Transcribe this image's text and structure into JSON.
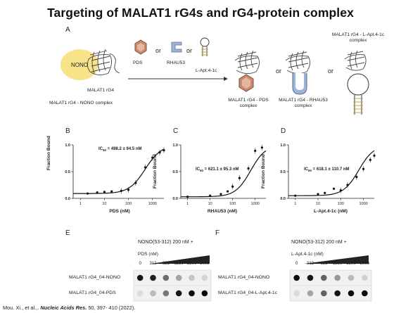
{
  "title": "Targeting of MALAT1 rG4s and rG4-protein complex",
  "panelA": {
    "label": "A",
    "nono": "NONO",
    "rg4": "MALAT1 rG4",
    "nono_complex": "MALAT1 rG4 - NONO complex",
    "pds": "PDS",
    "rhaus53": "RHAU53",
    "lapt": "L-Apt.4-1c",
    "or": "or",
    "pds_complex": "MALAT1 rG4 - PDS complex",
    "rhau_complex": "MALAT1 rG4 - RHAU53 complex",
    "lapt_complex": "MALAT1 rG4 - L-Apt.4-1c complex",
    "colors": {
      "nono": "#f7e38a",
      "pds": "#c98a6e",
      "rhau": "#9fb3d6"
    }
  },
  "binding_plots": [
    {
      "label": "B",
      "ic50": "IC",
      "ic50_sub": "50",
      "ic50_value": " = 498.2 ± 94.5 nM",
      "xlabel": "PDS (nM)",
      "ylabel": "Fraction Bound"
    },
    {
      "label": "C",
      "ic50": "IC",
      "ic50_sub": "50",
      "ic50_value": " = 621.1 ± 95.3 nM",
      "xlabel": "RHAU53 (nM)",
      "ylabel": "Fraction Bound"
    },
    {
      "label": "D",
      "ic50": "IC",
      "ic50_sub": "50",
      "ic50_value": " = 618.1 ± 110.7 nM",
      "xlabel": "L-Apt.4-1c (nM)",
      "ylabel": "Fraction Bound"
    }
  ],
  "chart_data": [
    {
      "type": "scatter",
      "xlabel": "PDS (nM)",
      "ylabel": "Fraction Bound",
      "xscale": "log",
      "xlim": [
        0.5,
        3000
      ],
      "ylim": [
        0,
        1.0
      ],
      "xticks": [
        "1",
        "10",
        "100",
        "1000"
      ],
      "yticks": [
        "0.0",
        "0.5",
        "1.0"
      ],
      "x": [
        2,
        5,
        10,
        20,
        50,
        100,
        200,
        500,
        1000,
        2000,
        3000
      ],
      "y": [
        0.09,
        0.11,
        0.12,
        0.13,
        0.14,
        0.16,
        0.29,
        0.58,
        0.76,
        0.86,
        0.9
      ],
      "fit_ic50": 498.2
    },
    {
      "type": "scatter",
      "xlabel": "RHAU53 (nM)",
      "ylabel": "Fraction Bound",
      "xscale": "log",
      "xlim": [
        0.5,
        3000
      ],
      "ylim": [
        0,
        1.0
      ],
      "xticks": [
        "1",
        "10",
        "100",
        "1000"
      ],
      "yticks": [
        "0.0",
        "0.5",
        "1.0"
      ],
      "x": [
        1,
        10,
        30,
        60,
        100,
        200,
        500,
        1000,
        2000
      ],
      "y": [
        0.03,
        0.05,
        0.08,
        0.13,
        0.22,
        0.38,
        0.56,
        0.89,
        0.95
      ],
      "fit_ic50": 621.1
    },
    {
      "type": "scatter",
      "xlabel": "L-Apt.4-1c (nM)",
      "ylabel": "Fraction Bound",
      "xscale": "log",
      "xlim": [
        0.5,
        3000
      ],
      "ylim": [
        0,
        1.0
      ],
      "xticks": [
        "1",
        "10",
        "100",
        "1000"
      ],
      "yticks": [
        "0.0",
        "0.5",
        "1.0"
      ],
      "x": [
        1,
        10,
        20,
        50,
        100,
        200,
        500,
        1000,
        2000,
        3000
      ],
      "y": [
        0.05,
        0.08,
        0.1,
        0.18,
        0.15,
        0.25,
        0.4,
        0.55,
        0.72,
        0.8
      ],
      "fit_ic50": 618.1
    }
  ],
  "dot_blots": [
    {
      "label": "E",
      "header": "NONO(53-312) 200 nM +",
      "reagent": "PDS (nM)",
      "concs": [
        "0",
        "312",
        "625",
        "1250",
        "2500",
        "5000"
      ],
      "rows": [
        {
          "name": "MALAT1 rG4_04-NONO",
          "intensity": [
            0.95,
            0.9,
            0.55,
            0.3,
            0.15,
            0.08
          ]
        },
        {
          "name": "MALAT1 rG4_04-PDS",
          "intensity": [
            0.05,
            0.2,
            0.5,
            0.95,
            1.0,
            1.0
          ]
        }
      ]
    },
    {
      "label": "F",
      "header": "NONO(53-312) 200 nM +",
      "reagent": "L-Apt.4-1c (nM)",
      "concs": [
        "0",
        "312",
        "625",
        "1250",
        "2500",
        "5000"
      ],
      "rows": [
        {
          "name": "MALAT1 rG4_04-NONO",
          "intensity": [
            1.0,
            0.95,
            0.6,
            0.35,
            0.2,
            0.1
          ]
        },
        {
          "name": "MALAT1 rG4_04-L-Apt.4-1c",
          "intensity": [
            0.05,
            0.3,
            0.6,
            0.95,
            1.0,
            1.0
          ]
        }
      ]
    }
  ],
  "citation": {
    "authors": "Mou. Xi., et al.,. ",
    "journal": "Nucleic Acids Res.",
    "rest": " 50, 397- 410 (2022)."
  }
}
